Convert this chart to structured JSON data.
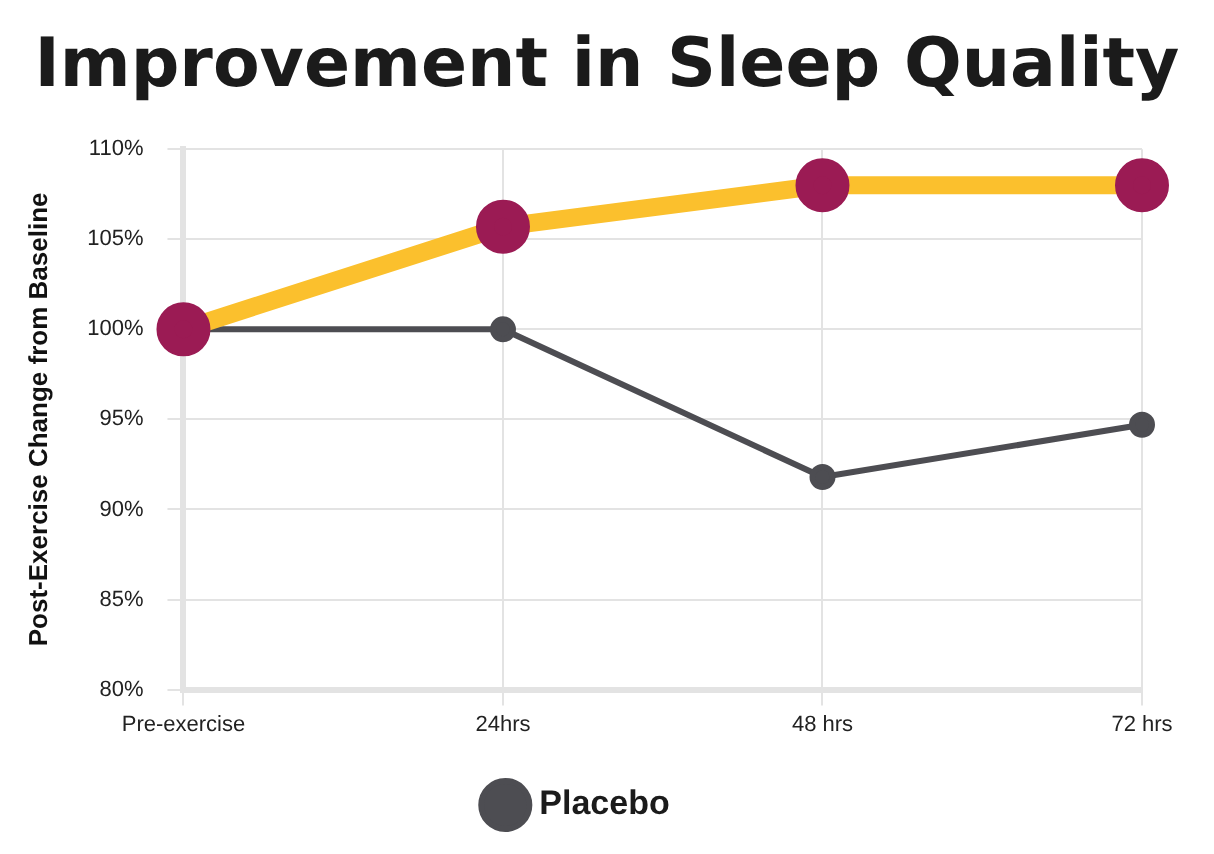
{
  "chart_data": {
    "type": "line",
    "title": "Improvement in Sleep Quality",
    "ylabel": "Post-Exercise Change from Baseline",
    "categories": [
      "Pre-exercise",
      "24hrs",
      "48 hrs",
      "72 hrs"
    ],
    "series": [
      {
        "name": "Placebo",
        "color": "#4d4d52",
        "values": [
          100,
          100,
          91.8,
          94.7
        ]
      },
      {
        "color": "#fbc02d",
        "colors": [
          "#9b1b54",
          "#9b1b54",
          "#9b1b54",
          "#9b1b54"
        ],
        "values": [
          100,
          105.7,
          108,
          108
        ]
      }
    ],
    "ylim": [
      80,
      110
    ],
    "yticks": [
      {
        "value": 80,
        "label": "80%"
      },
      {
        "value": 85,
        "label": "85%"
      },
      {
        "value": 90,
        "label": "90%"
      },
      {
        "value": 95,
        "label": "95%"
      },
      {
        "value": 100,
        "label": "100%"
      },
      {
        "value": 105,
        "label": "105%"
      },
      {
        "value": 110,
        "label": "110%"
      }
    ],
    "grid": true,
    "legend": "bottom",
    "marker": "circle",
    "line_style": "solid"
  }
}
